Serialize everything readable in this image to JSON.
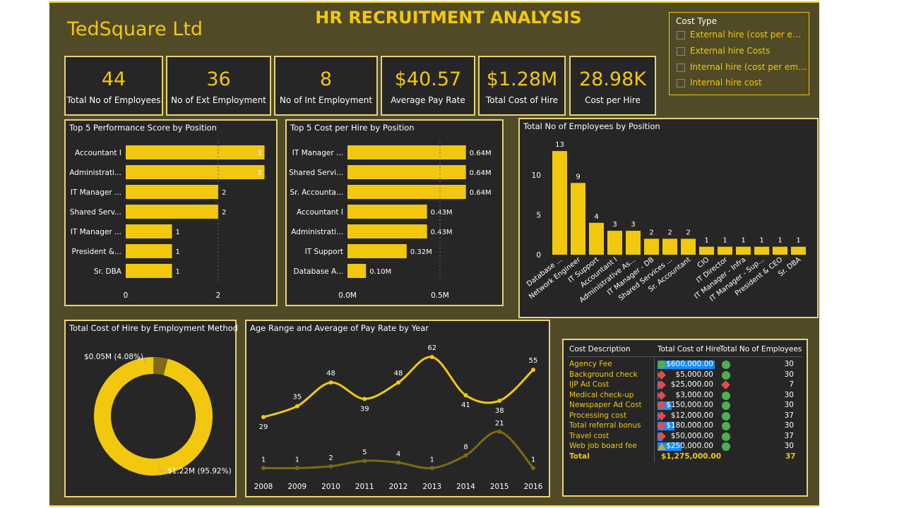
{
  "header": {
    "company": "TedSquare Ltd",
    "title": "HR RECRUITMENT ANALYSIS"
  },
  "kpis": [
    {
      "value": "44",
      "label": "Total No of Employees"
    },
    {
      "value": "36",
      "label": "No of Ext Employment"
    },
    {
      "value": "8",
      "label": "No of Int Employment"
    },
    {
      "value": "$40.57",
      "label": "Average Pay Rate"
    },
    {
      "value": "$1.28M",
      "label": "Total Cost of Hire"
    },
    {
      "value": "28.98K",
      "label": "Cost per Hire"
    }
  ],
  "slicer": {
    "title": "Cost Type",
    "options": [
      "External hire (cost per empl...",
      "External hire Costs",
      "Internal hire (cost per empl...",
      "Internal hire cost"
    ]
  },
  "colors": {
    "accent": "#f2c80f",
    "panel": "#262626",
    "background": "#504a27",
    "dark_series": "#7d6a12",
    "table_bar": "#118dff",
    "status_ok": "#4caf50",
    "status_bad": "#e44c4c"
  },
  "chart_data": [
    {
      "type": "bar",
      "orientation": "horizontal",
      "title": "Top 5 Performance Score by Position",
      "categories": [
        "Accountant I",
        "Administrati...",
        "IT Manager ...",
        "Shared Serv...",
        "IT Manager ...",
        "President &...",
        "Sr. DBA"
      ],
      "values": [
        3,
        3,
        2,
        2,
        1,
        1,
        1
      ],
      "axis_ticks": [
        "0",
        "2"
      ],
      "xlim": [
        0,
        3.2
      ]
    },
    {
      "type": "bar",
      "orientation": "horizontal",
      "title": "Top 5 Cost per Hire by Position",
      "categories": [
        "IT Manager ...",
        "Shared Servi...",
        "Sr. Accounta...",
        "Accountant I",
        "Administrati...",
        "IT Support",
        "Database A..."
      ],
      "values": [
        0.64,
        0.64,
        0.64,
        0.43,
        0.43,
        0.32,
        0.1
      ],
      "data_labels": [
        "0.64M",
        "0.64M",
        "0.64M",
        "0.43M",
        "0.43M",
        "0.32M",
        "0.10M"
      ],
      "axis_ticks": [
        "0.0M",
        "0.5M"
      ],
      "xlim": [
        0,
        0.8
      ]
    },
    {
      "type": "bar",
      "orientation": "vertical",
      "title": "Total No of Employees by Position",
      "categories": [
        "Database ...",
        "Network Engineer",
        "IT Support",
        "Accountant I",
        "Administrative As...",
        "IT Manager - DB",
        "Shared Services ...",
        "Sr. Accountant",
        "CIO",
        "IT Director",
        "IT Manager - Infra",
        "IT Manager - Sup...",
        "President & CEO",
        "Sr. DBA"
      ],
      "values": [
        13,
        9,
        4,
        3,
        3,
        2,
        2,
        2,
        1,
        1,
        1,
        1,
        1,
        1
      ],
      "axis_ticks": [
        "0",
        "5",
        "10"
      ],
      "ylim": [
        0,
        15
      ]
    },
    {
      "type": "pie",
      "donut": true,
      "title": "Total Cost of Hire by Employment Method",
      "slices": [
        {
          "value": 1.22,
          "label": "$1.22M (95.92%)",
          "color": "#f2c80f"
        },
        {
          "value": 0.05,
          "label": "$0.05M (4.08%)",
          "color": "#7d6a12"
        }
      ]
    },
    {
      "type": "line",
      "title": "Age Range and Average of Pay Rate by Year",
      "x": [
        "2008",
        "2009",
        "2010",
        "2011",
        "2012",
        "2013",
        "2014",
        "2015",
        "2016"
      ],
      "series": [
        {
          "values": [
            29,
            35,
            48,
            39,
            48,
            62,
            41,
            38,
            55
          ],
          "color": "#f2c80f"
        },
        {
          "values": [
            1,
            1,
            2,
            5,
            4,
            1,
            8,
            21,
            1
          ],
          "color": "#7d6a12"
        }
      ]
    }
  ],
  "table": {
    "headers": [
      "Cost Description",
      "Total Cost of Hire",
      "Total No of Employees"
    ],
    "rows": [
      {
        "desc": "Agency Fee",
        "cost": "$600,000.00",
        "cost_frac": 1.0,
        "cost_icon": "circle-green",
        "emp": "30",
        "emp_icon": "circle-green"
      },
      {
        "desc": "Background check",
        "cost": "$5,000.00",
        "cost_frac": 0.01,
        "cost_icon": "diamond-red",
        "emp": "30",
        "emp_icon": "circle-green"
      },
      {
        "desc": "IJP Ad Cost",
        "cost": "$25,000.00",
        "cost_frac": 0.04,
        "cost_icon": "diamond-red",
        "emp": "7",
        "emp_icon": "diamond-red"
      },
      {
        "desc": "Medical check-up",
        "cost": "$3,000.00",
        "cost_frac": 0.005,
        "cost_icon": "diamond-red",
        "emp": "30",
        "emp_icon": "circle-green"
      },
      {
        "desc": "Newspaper Ad Cost",
        "cost": "$150,000.00",
        "cost_frac": 0.25,
        "cost_icon": "diamond-red",
        "emp": "30",
        "emp_icon": "circle-green"
      },
      {
        "desc": "Processing cost",
        "cost": "$12,000.00",
        "cost_frac": 0.02,
        "cost_icon": "diamond-red",
        "emp": "37",
        "emp_icon": "circle-green"
      },
      {
        "desc": "Total referral bonus",
        "cost": "$180,000.00",
        "cost_frac": 0.3,
        "cost_icon": "diamond-red",
        "emp": "30",
        "emp_icon": "circle-green"
      },
      {
        "desc": "Travel cost",
        "cost": "$50,000.00",
        "cost_frac": 0.083,
        "cost_icon": "diamond-red",
        "emp": "37",
        "emp_icon": "circle-green"
      },
      {
        "desc": "Web job board fee",
        "cost": "$250,000.00",
        "cost_frac": 0.417,
        "cost_icon": "triangle-orange",
        "emp": "30",
        "emp_icon": "circle-green"
      }
    ],
    "total": {
      "label": "Total",
      "cost": "$1,275,000.00",
      "emp": "37"
    }
  }
}
